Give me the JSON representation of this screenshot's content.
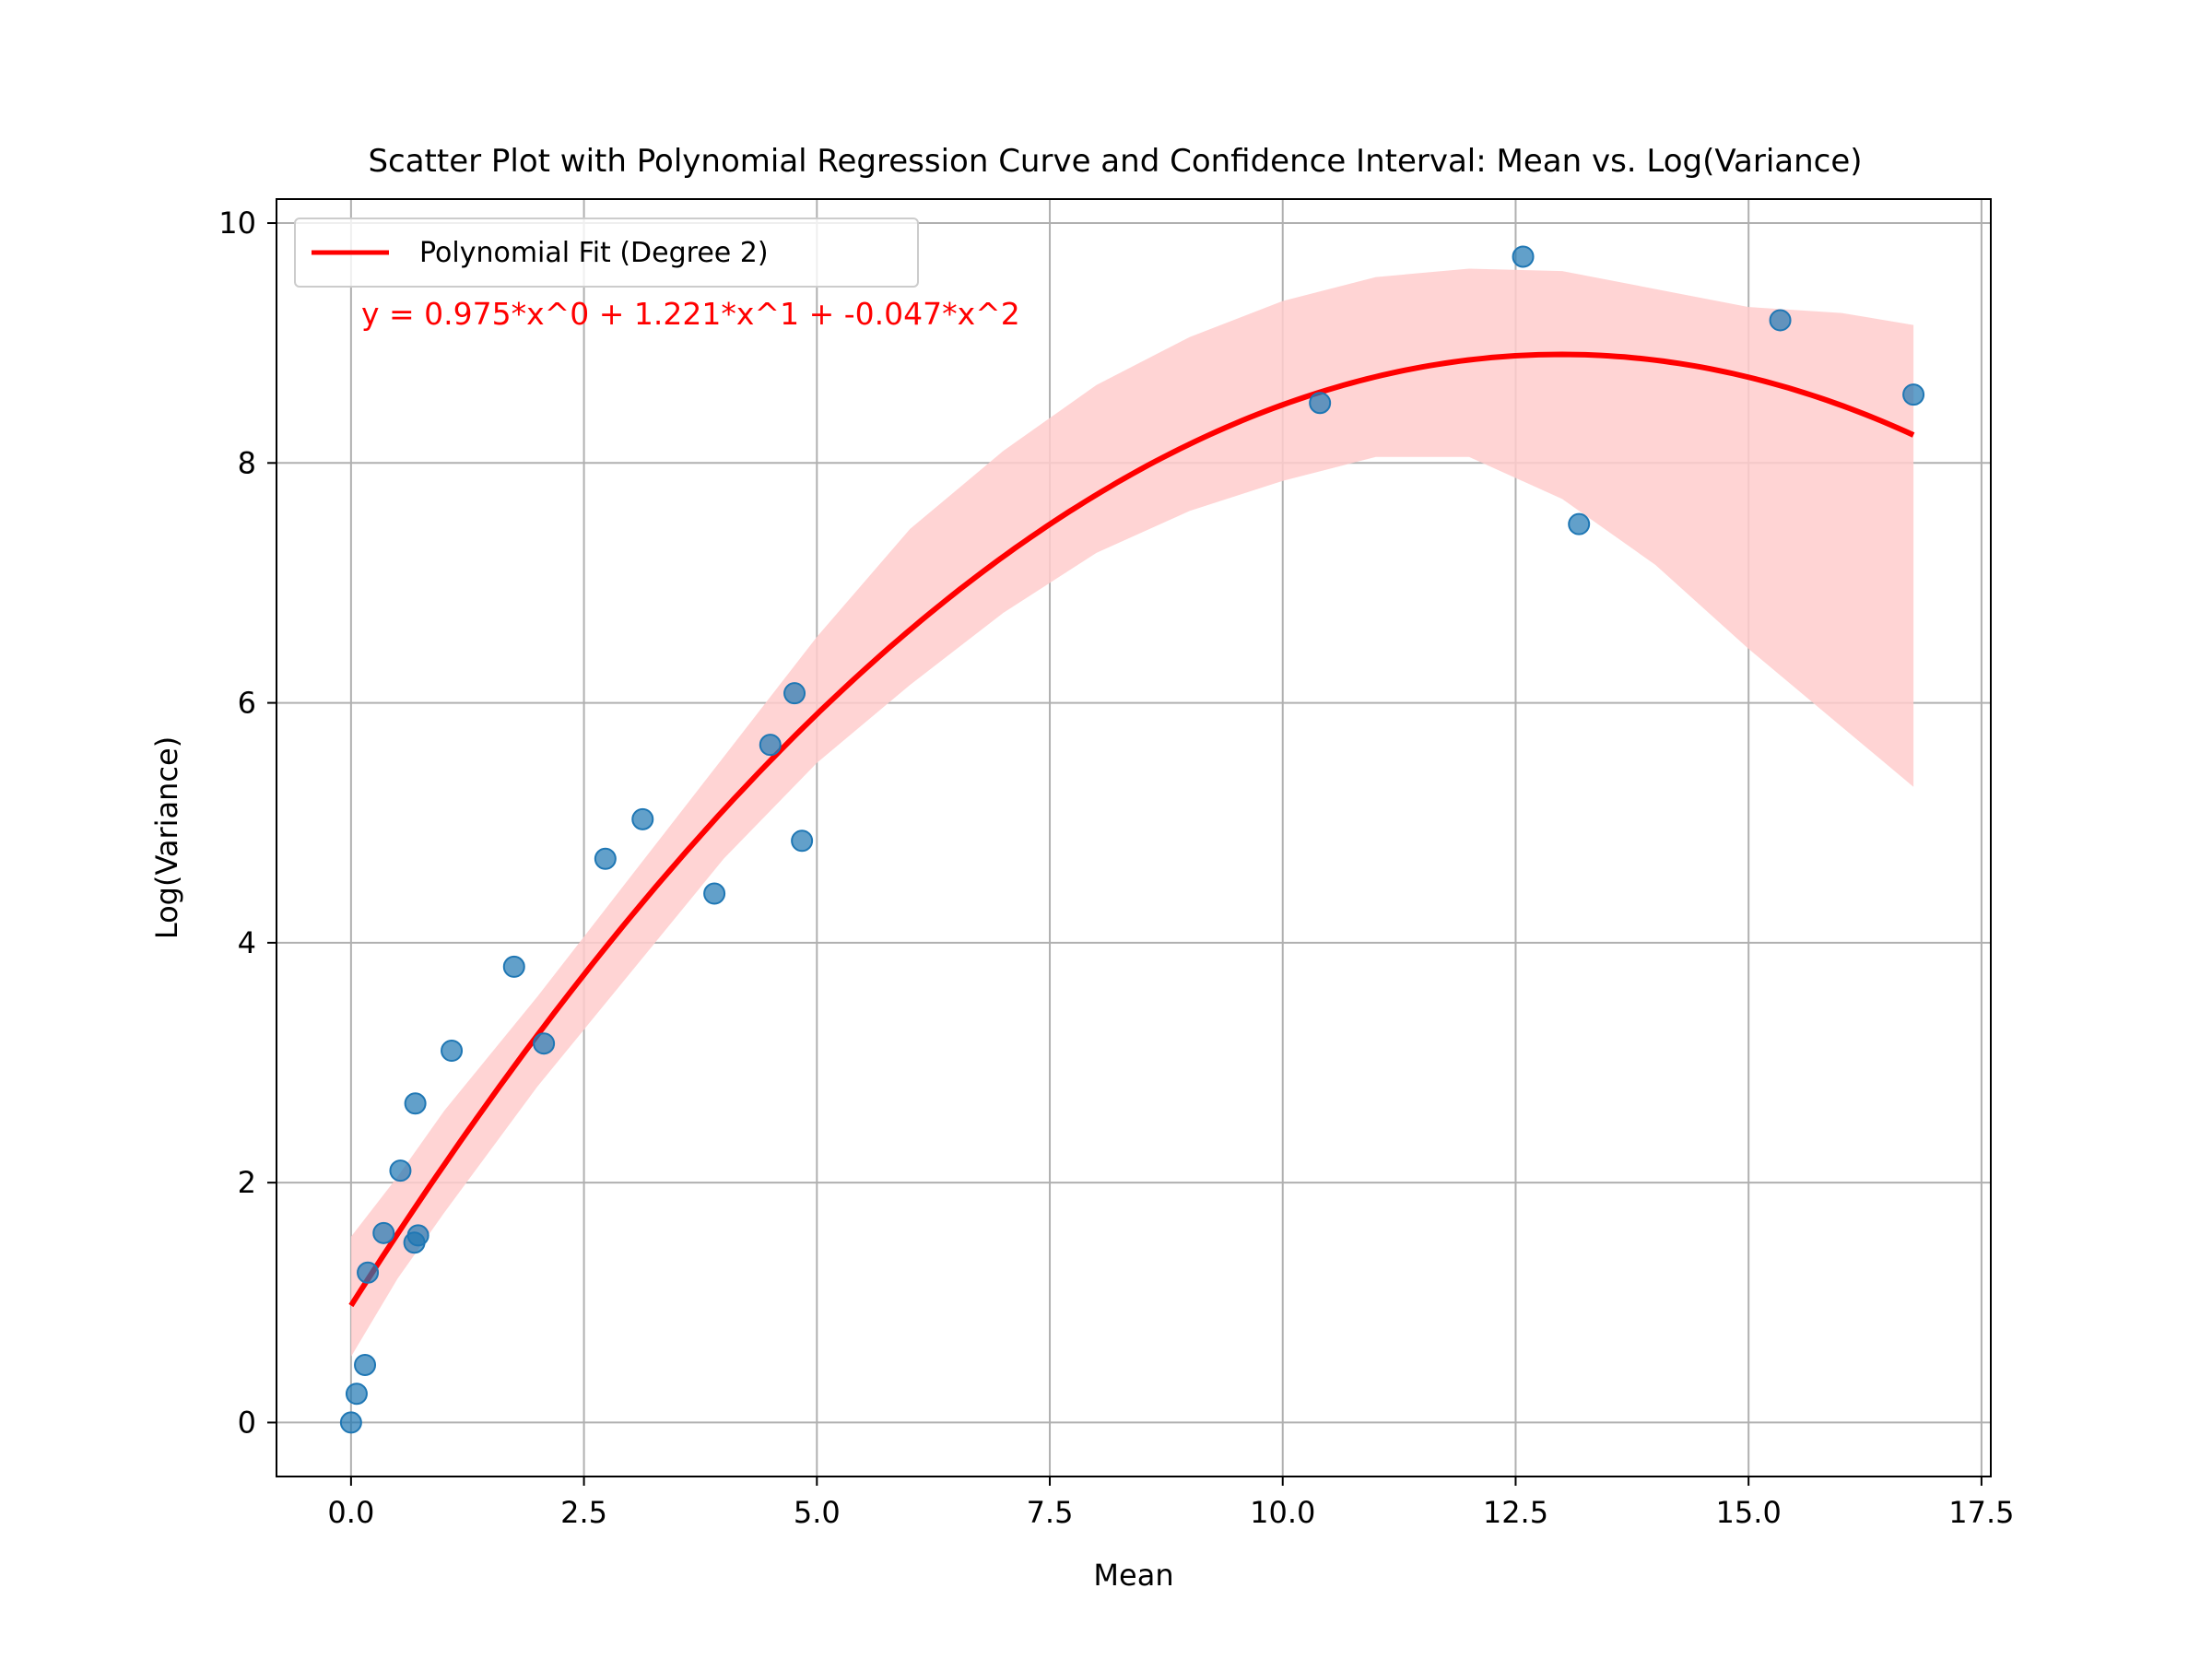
{
  "chart_data": {
    "type": "scatter",
    "title": "Scatter Plot with Polynomial Regression Curve and Confidence Interval: Mean vs. Log(Variance)",
    "xlabel": "Mean",
    "ylabel": "Log(Variance)",
    "xlim": [
      -0.8,
      17.6
    ],
    "ylim": [
      -0.45,
      10.2
    ],
    "xticks": [
      0.0,
      2.5,
      5.0,
      7.5,
      10.0,
      12.5,
      15.0,
      17.5
    ],
    "xtick_labels": [
      "0.0",
      "2.5",
      "5.0",
      "7.5",
      "10.0",
      "12.5",
      "15.0",
      "17.5"
    ],
    "yticks": [
      0,
      2,
      4,
      6,
      8,
      10
    ],
    "ytick_labels": [
      "0",
      "2",
      "4",
      "6",
      "8",
      "10"
    ],
    "grid": true,
    "legend_position": "top-left",
    "equation_annotation": "y = 0.975*x^0 + 1.221*x^1 + -0.047*x^2",
    "colors": {
      "points": "#1f77b4",
      "fit": "#ff0000",
      "band": "#ffcccc"
    },
    "scatter": {
      "x": [
        0.0,
        0.06,
        0.15,
        0.18,
        0.35,
        0.53,
        0.68,
        0.69,
        0.72,
        1.08,
        1.75,
        2.07,
        2.73,
        3.13,
        3.9,
        4.5,
        4.76,
        4.84,
        10.4,
        12.58,
        13.18,
        15.34,
        16.77
      ],
      "y": [
        0.0,
        0.24,
        0.48,
        1.25,
        1.58,
        2.1,
        1.5,
        2.66,
        1.56,
        3.1,
        3.8,
        3.16,
        4.7,
        5.03,
        4.41,
        5.65,
        6.08,
        4.85,
        8.5,
        9.72,
        7.49,
        9.19,
        8.57
      ]
    },
    "series": [
      {
        "name": "Polynomial Fit (Degree 2)",
        "type": "line",
        "coefficients": [
          0.975,
          1.221,
          -0.047
        ],
        "x_range": [
          0.0,
          16.77
        ]
      }
    ],
    "confidence_band": {
      "x": [
        0.0,
        0.5,
        1.0,
        2.0,
        3.0,
        4.0,
        5.0,
        6.0,
        7.0,
        8.0,
        9.0,
        10.0,
        11.0,
        12.0,
        13.0,
        14.0,
        15.0,
        16.0,
        16.77
      ],
      "upper": [
        1.55,
        2.05,
        2.6,
        3.55,
        4.55,
        5.55,
        6.55,
        7.45,
        8.1,
        8.65,
        9.05,
        9.35,
        9.55,
        9.62,
        9.6,
        9.45,
        9.3,
        9.25,
        9.15
      ],
      "lower": [
        0.55,
        1.2,
        1.75,
        2.8,
        3.75,
        4.7,
        5.5,
        6.15,
        6.75,
        7.25,
        7.6,
        7.85,
        8.05,
        8.05,
        7.7,
        7.15,
        6.45,
        5.8,
        5.3
      ]
    }
  }
}
